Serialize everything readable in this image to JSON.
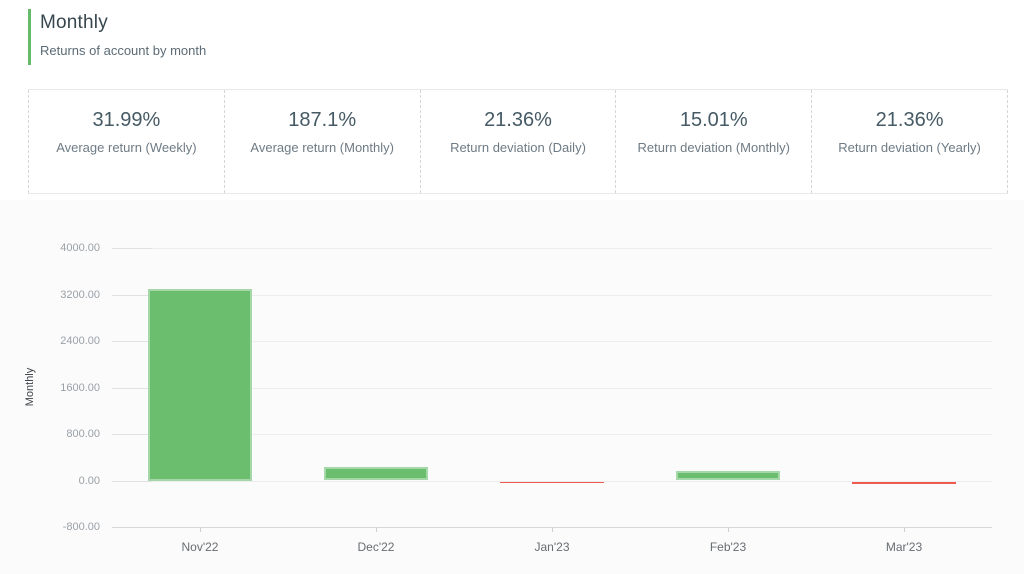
{
  "header": {
    "title": "Monthly",
    "subtitle": "Returns of account by month",
    "accent_color": "#66bb6a"
  },
  "stats": {
    "items": [
      {
        "value": "31.99%",
        "label": "Average return (Weekly)"
      },
      {
        "value": "187.1%",
        "label": "Average return (Monthly)"
      },
      {
        "value": "21.36%",
        "label": "Return deviation (Daily)"
      },
      {
        "value": "15.01%",
        "label": "Return deviation (Monthly)"
      },
      {
        "value": "21.36%",
        "label": "Return deviation (Yearly)"
      }
    ]
  },
  "chart_data": {
    "type": "bar",
    "title": "Monthly",
    "categories": [
      "Nov'22",
      "Dec'22",
      "Jan'23",
      "Feb'23",
      "Mar'23"
    ],
    "values": [
      3300,
      230,
      -25,
      160,
      -40
    ],
    "xlabel": "",
    "ylabel": "Monthly",
    "ylim": [
      -800,
      4000
    ],
    "yticks": [
      4000,
      3200,
      2400,
      1600,
      800,
      0,
      -800
    ],
    "ytick_decimals": 2,
    "grid": true,
    "legend": false,
    "positive_color": "#6abe6e",
    "positive_border_color": "#a6d7a8",
    "negative_color": "#ef5a50"
  }
}
